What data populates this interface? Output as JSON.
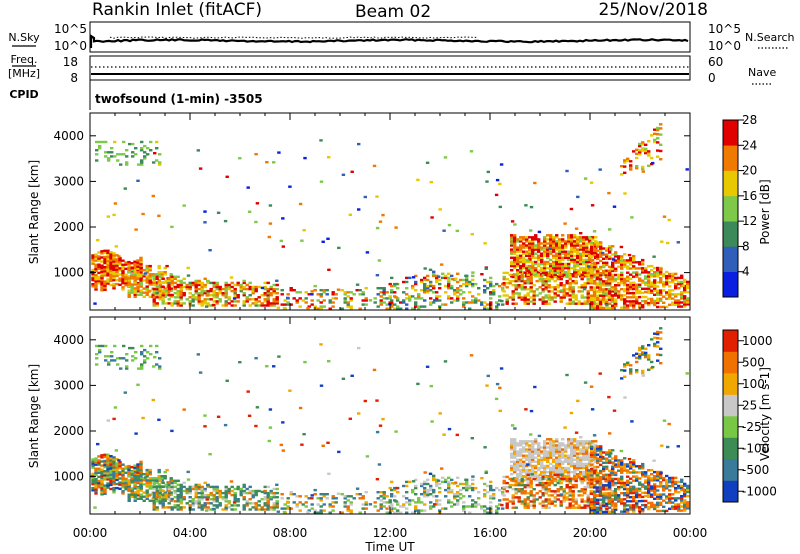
{
  "header": {
    "station": "Rankin Inlet (fitACF)",
    "beam": "Beam 02",
    "date": "25/Nov/2018"
  },
  "noise_panel": {
    "left_label": "N.Sky",
    "right_label": "N.Search",
    "left_ticks": [
      "10^5",
      "10^0"
    ],
    "right_ticks": [
      "10^5",
      "10^0"
    ]
  },
  "freq_panel": {
    "left_label_1": "Freq.",
    "left_label_2": "[MHz]",
    "right_label": "Nave",
    "left_ticks": [
      "18",
      "8"
    ],
    "right_ticks": [
      "60",
      "0"
    ],
    "cpid_label": "CPID",
    "cpid_text": "twofsound (1-min) -3505"
  },
  "chart_data": [
    {
      "type": "heatmap",
      "ylabel": "Slant Range [km]",
      "y_ticks": [
        1000,
        2000,
        3000,
        4000
      ],
      "ylim": [
        180,
        4500
      ],
      "colorbar": {
        "label": "Power [dB]",
        "ticks": [
          "4",
          "8",
          "12",
          "16",
          "20",
          "24",
          "28"
        ],
        "range": [
          0,
          30
        ],
        "colors": [
          "#0a1fe0",
          "#2f5fb8",
          "#3c8a5a",
          "#7ec84a",
          "#e8c800",
          "#f07a00",
          "#e00000"
        ]
      }
    },
    {
      "type": "heatmap",
      "ylabel": "Slant Range [km]",
      "y_ticks": [
        1000,
        2000,
        3000,
        4000
      ],
      "ylim": [
        180,
        4500
      ],
      "colorbar": {
        "label": "Velocity [m s-1]",
        "ticks": [
          "1000",
          "500",
          "100",
          "25",
          "-25",
          "-100",
          "-500",
          "-1000"
        ],
        "colors": [
          "#1040c0",
          "#3a7a9a",
          "#3e8c55",
          "#78c846",
          "#c8c8c8",
          "#f0a800",
          "#f07000",
          "#e02000"
        ]
      }
    }
  ],
  "time_axis": {
    "label": "Time UT",
    "ticks": [
      "00:00",
      "04:00",
      "08:00",
      "12:00",
      "16:00",
      "20:00",
      "00:00"
    ]
  }
}
